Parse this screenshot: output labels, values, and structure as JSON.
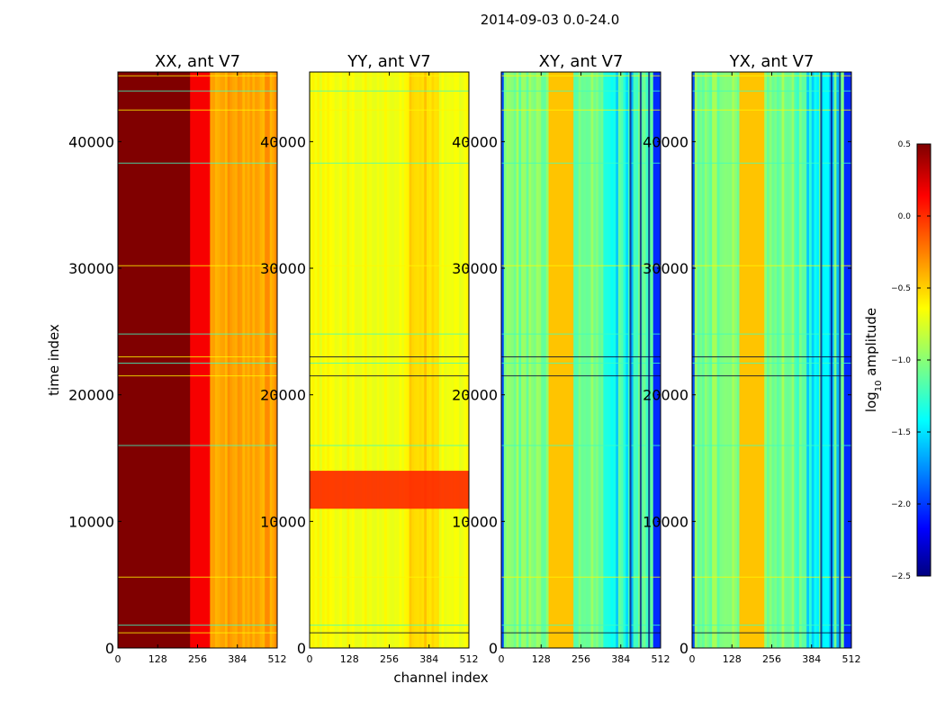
{
  "chart_data": {
    "type": "heatmap",
    "title": "2014-09-03 0.0-24.0",
    "xlabel": "channel index",
    "ylabel": "time index",
    "xlim": [
      0,
      512
    ],
    "ylim": [
      0,
      45500
    ],
    "x_ticks": [
      "0",
      "128",
      "256",
      "384",
      "512"
    ],
    "y_ticks": [
      "0",
      "10000",
      "20000",
      "30000",
      "40000"
    ],
    "panels": [
      {
        "title": "XX, ant V7",
        "pol": "XX",
        "median_log10_amplitude": 0.45
      },
      {
        "title": "YY, ant V7",
        "pol": "YY",
        "median_log10_amplitude": -0.6
      },
      {
        "title": "XY, ant V7",
        "pol": "XY",
        "median_log10_amplitude": -1.0
      },
      {
        "title": "YX, ant V7",
        "pol": "YX",
        "median_log10_amplitude": -1.0
      }
    ],
    "colorbar": {
      "label_main": "log",
      "label_sub": "10",
      "label_rest": " amplitude",
      "range": [
        -2.5,
        0.5
      ],
      "ticks": [
        "0.5",
        "0.0",
        "−0.5",
        "−1.0",
        "−1.5",
        "−2.0",
        "−2.5"
      ],
      "tick_values": [
        0.5,
        0.0,
        -0.5,
        -1.0,
        -1.5,
        -2.0,
        -2.5
      ],
      "colormap": "jet"
    }
  }
}
